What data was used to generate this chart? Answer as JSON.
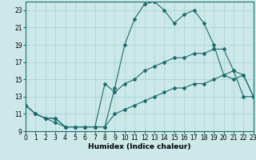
{
  "xlabel": "Humidex (Indice chaleur)",
  "bg_color": "#cce8e8",
  "grid_color": "#aad4d4",
  "line_color": "#1a6e6e",
  "xlim": [
    0,
    23
  ],
  "ylim": [
    9,
    24
  ],
  "xticks": [
    0,
    1,
    2,
    3,
    4,
    5,
    6,
    7,
    8,
    9,
    10,
    11,
    12,
    13,
    14,
    15,
    16,
    17,
    18,
    19,
    20,
    21,
    22,
    23
  ],
  "yticks": [
    9,
    11,
    13,
    15,
    17,
    19,
    21,
    23
  ],
  "line1_x": [
    0,
    1,
    2,
    3,
    4,
    5,
    6,
    7,
    8,
    9,
    10,
    11,
    12,
    13,
    14,
    15,
    16,
    17,
    18,
    19,
    20,
    21,
    22,
    23
  ],
  "line1_y": [
    12,
    11,
    10.5,
    10.5,
    9.5,
    9.5,
    9.5,
    9.5,
    9.5,
    14,
    19,
    22,
    23.7,
    24,
    23,
    21.5,
    22.5,
    23,
    21.5,
    19,
    15.5,
    16,
    13,
    13
  ],
  "line2_x": [
    0,
    1,
    2,
    3,
    4,
    5,
    6,
    7,
    8,
    9,
    10,
    11,
    12,
    13,
    14,
    15,
    16,
    17,
    18,
    19,
    20,
    21,
    22,
    23
  ],
  "line2_y": [
    12,
    11,
    10.5,
    10.5,
    9.5,
    9.5,
    9.5,
    9.5,
    14.5,
    13.5,
    14.5,
    15,
    16,
    16.5,
    17,
    17.5,
    17.5,
    18,
    18,
    18.5,
    18.5,
    16,
    15.5,
    13
  ],
  "line3_x": [
    0,
    1,
    2,
    3,
    4,
    5,
    6,
    7,
    8,
    9,
    10,
    11,
    12,
    13,
    14,
    15,
    16,
    17,
    18,
    19,
    20,
    21,
    22,
    23
  ],
  "line3_y": [
    12,
    11,
    10.5,
    10,
    9.5,
    9.5,
    9.5,
    9.5,
    9.5,
    11,
    11.5,
    12,
    12.5,
    13,
    13.5,
    14,
    14,
    14.5,
    14.5,
    15,
    15.5,
    15,
    15.5,
    13
  ]
}
